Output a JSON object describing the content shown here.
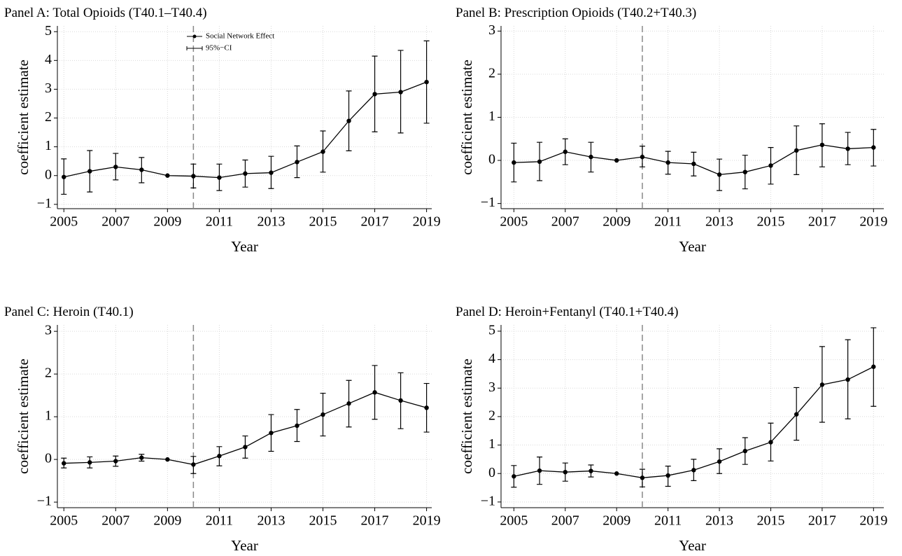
{
  "chart_data": [
    {
      "type": "line",
      "title": "Panel A: Total Opioids (T40.1–T40.4)",
      "xlabel": "Year",
      "ylabel": "coefficient estimate",
      "x": [
        2005,
        2006,
        2007,
        2008,
        2009,
        2010,
        2011,
        2012,
        2013,
        2014,
        2015,
        2016,
        2017,
        2018,
        2019
      ],
      "xlim": [
        2004.75,
        2019.2
      ],
      "xticks": [
        2005,
        2007,
        2009,
        2011,
        2013,
        2015,
        2017,
        2019
      ],
      "ylim": [
        -1.15,
        5.2
      ],
      "yticks": [
        {
          "value": -1,
          "label": "−1"
        },
        0,
        1,
        2,
        3,
        4,
        5
      ],
      "grid": true,
      "vline": 2010,
      "ci_name": "95%−CI",
      "series": [
        {
          "name": "Social Network Effect",
          "color": "#000000",
          "values": [
            -0.05,
            0.15,
            0.3,
            0.2,
            0,
            -0.02,
            -0.07,
            0.07,
            0.1,
            0.47,
            0.83,
            1.9,
            2.83,
            2.9,
            3.25
          ],
          "ci_lower": [
            -0.65,
            -0.57,
            -0.15,
            -0.25,
            null,
            -0.43,
            -0.52,
            -0.4,
            -0.45,
            -0.07,
            0.12,
            0.86,
            1.52,
            1.48,
            1.82
          ],
          "ci_upper": [
            0.58,
            0.87,
            0.77,
            0.63,
            null,
            0.4,
            0.4,
            0.54,
            0.67,
            1.03,
            1.55,
            2.94,
            4.15,
            4.35,
            4.68
          ]
        }
      ]
    },
    {
      "type": "line",
      "title": "Panel B: Prescription Opioids (T40.2+T40.3)",
      "xlabel": "Year",
      "ylabel": "coefficient estimate",
      "x": [
        2005,
        2006,
        2007,
        2008,
        2009,
        2010,
        2011,
        2012,
        2013,
        2014,
        2015,
        2016,
        2017,
        2018,
        2019
      ],
      "xlim": [
        2004.5,
        2019.4
      ],
      "xticks": [
        2005,
        2007,
        2009,
        2011,
        2013,
        2015,
        2017,
        2019
      ],
      "ylim": [
        -1.12,
        3.12
      ],
      "yticks": [
        {
          "value": -1,
          "label": "−1"
        },
        0,
        1,
        2,
        3
      ],
      "grid": true,
      "vline": 2010,
      "series": [
        {
          "color": "#000000",
          "values": [
            -0.05,
            -0.03,
            0.2,
            0.08,
            0,
            0.08,
            -0.05,
            -0.08,
            -0.33,
            -0.27,
            -0.12,
            0.23,
            0.36,
            0.27,
            0.3
          ],
          "ci_lower": [
            -0.5,
            -0.47,
            -0.1,
            -0.27,
            null,
            -0.15,
            -0.32,
            -0.36,
            -0.7,
            -0.66,
            -0.55,
            -0.33,
            -0.15,
            -0.1,
            -0.13
          ],
          "ci_upper": [
            0.4,
            0.42,
            0.5,
            0.42,
            null,
            0.33,
            0.21,
            0.19,
            0.03,
            0.12,
            0.3,
            0.8,
            0.85,
            0.65,
            0.72
          ]
        }
      ]
    },
    {
      "type": "line",
      "title": "Panel C: Heroin (T40.1)",
      "xlabel": "Year",
      "ylabel": "coefficient estimate",
      "x": [
        2005,
        2006,
        2007,
        2008,
        2009,
        2010,
        2011,
        2012,
        2013,
        2014,
        2015,
        2016,
        2017,
        2018,
        2019
      ],
      "xlim": [
        2004.75,
        2019.2
      ],
      "xticks": [
        2005,
        2007,
        2009,
        2011,
        2013,
        2015,
        2017,
        2019
      ],
      "ylim": [
        -1.13,
        3.15
      ],
      "yticks": [
        {
          "value": -1,
          "label": "−1"
        },
        0,
        1,
        2,
        3
      ],
      "grid": true,
      "vline": 2010,
      "series": [
        {
          "color": "#000000",
          "values": [
            -0.09,
            -0.07,
            -0.04,
            0.04,
            0,
            -0.12,
            0.08,
            0.29,
            0.62,
            0.79,
            1.05,
            1.31,
            1.57,
            1.38,
            1.21
          ],
          "ci_lower": [
            -0.2,
            -0.2,
            -0.16,
            -0.04,
            null,
            -0.33,
            -0.15,
            0.03,
            0.19,
            0.42,
            0.55,
            0.76,
            0.94,
            0.72,
            0.64
          ],
          "ci_upper": [
            0.03,
            0.06,
            0.08,
            0.12,
            null,
            0.07,
            0.3,
            0.55,
            1.05,
            1.17,
            1.55,
            1.85,
            2.2,
            2.03,
            1.78
          ]
        }
      ]
    },
    {
      "type": "line",
      "title": "Panel D: Heroin+Fentanyl (T40.1+T40.4)",
      "xlabel": "Year",
      "ylabel": "coefficient estimate",
      "x": [
        2005,
        2006,
        2007,
        2008,
        2009,
        2010,
        2011,
        2012,
        2013,
        2014,
        2015,
        2016,
        2017,
        2018,
        2019
      ],
      "xlim": [
        2004.5,
        2019.4
      ],
      "xticks": [
        2005,
        2007,
        2009,
        2011,
        2013,
        2015,
        2017,
        2019
      ],
      "ylim": [
        -1.2,
        5.22
      ],
      "yticks": [
        {
          "value": -1,
          "label": "−1"
        },
        0,
        1,
        2,
        3,
        4,
        5
      ],
      "grid": true,
      "vline": 2010,
      "series": [
        {
          "color": "#000000",
          "values": [
            -0.1,
            0.1,
            0.05,
            0.09,
            0,
            -0.15,
            -0.07,
            0.12,
            0.42,
            0.79,
            1.1,
            2.08,
            3.12,
            3.3,
            3.75
          ],
          "ci_lower": [
            -0.48,
            -0.38,
            -0.27,
            -0.12,
            null,
            -0.47,
            -0.45,
            -0.25,
            0,
            0.32,
            0.44,
            1.17,
            1.8,
            1.92,
            2.36
          ],
          "ci_upper": [
            0.28,
            0.58,
            0.37,
            0.3,
            null,
            0.15,
            0.26,
            0.5,
            0.87,
            1.26,
            1.77,
            3.02,
            4.46,
            4.7,
            5.12
          ]
        }
      ]
    }
  ]
}
